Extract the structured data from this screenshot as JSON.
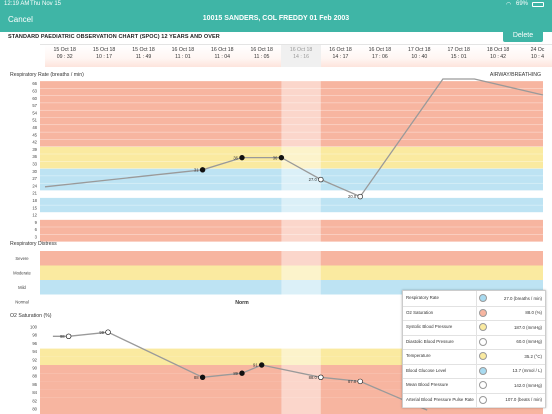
{
  "status_bar": {
    "time": "12:19 AM",
    "date": "Thu Nov 15",
    "battery": "69%"
  },
  "nav": {
    "cancel_label": "Cancel",
    "patient": "10015 SANDERS, COL FREDDY 01 Feb 2003"
  },
  "chart_title": "STANDARD PAEDIATRIC OBSERVATION CHART  (SPOC) 12 YEARS AND OVER",
  "delete_label": "Delete",
  "timepoints": [
    {
      "date": "15 Oct 18",
      "time": "09 : 32"
    },
    {
      "date": "15 Oct 18",
      "time": "10 : 17"
    },
    {
      "date": "15 Oct 18",
      "time": "11 : 49"
    },
    {
      "date": "16 Oct 18",
      "time": "11 : 01"
    },
    {
      "date": "16 Oct 18",
      "time": "11 : 04"
    },
    {
      "date": "16 Oct 18",
      "time": "11 : 05"
    },
    {
      "date": "16 Oct 18",
      "time": "14 : 16"
    },
    {
      "date": "16 Oct 18",
      "time": "14 : 17"
    },
    {
      "date": "16 Oct 18",
      "time": "17 : 06"
    },
    {
      "date": "17 Oct 18",
      "time": "10 : 40"
    },
    {
      "date": "17 Oct 18",
      "time": "15 : 01"
    },
    {
      "date": "18 Oct 18",
      "time": "10 : 42"
    },
    {
      "date": "24 Oc",
      "time": "10 : 4"
    }
  ],
  "resp_rate": {
    "title": "Respiratory Rate (breaths / min)",
    "right_label": "AIRWAY/BREATHING",
    "ticks": [
      "66",
      "63",
      "60",
      "57",
      "54",
      "51",
      "48",
      "45",
      "42",
      "39",
      "36",
      "33",
      "30",
      "27",
      "24",
      "21",
      "18",
      "15",
      "12",
      "9",
      "6",
      "3"
    ],
    "point_labels": [
      "31",
      "36",
      "36",
      "27.0",
      "20.0"
    ],
    "band_colors": {
      "red": "#f7b5a0",
      "yellow": "#faeaa0",
      "blue": "#bde3f3",
      "white": "#ffffff"
    }
  },
  "resp_distress": {
    "title": "Respiratory Distress",
    "rows": [
      "Severe",
      "Moderate",
      "Mild",
      "Normal"
    ],
    "normal_value": "Norm"
  },
  "o2_sat": {
    "title": "O2 Saturation (%)",
    "ticks": [
      "100",
      "98",
      "96",
      "94",
      "92",
      "90",
      "88",
      "86",
      "84",
      "82",
      "80"
    ],
    "point_labels": [
      "98",
      "99",
      "88",
      "89",
      "91",
      "88.0",
      "87.0"
    ]
  },
  "legend": [
    {
      "name": "Respiratory Rate",
      "color": "#a8daf0",
      "value": "27.0  (breaths / min)"
    },
    {
      "name": "O2 Saturation",
      "color": "#f7b5a0",
      "value": "88.0  (%)"
    },
    {
      "name": "Systolic Blood Pressure",
      "color": "#faeaa0",
      "value": "187.0  (mmHg)"
    },
    {
      "name": "Diastolic Blood Pressure",
      "color": "#ffffff",
      "value": "60.0  (mmHg)"
    },
    {
      "name": "Temperature",
      "color": "#faeaa0",
      "value": "35.2  (°C)"
    },
    {
      "name": "Blood Glucose Level",
      "color": "#a8daf0",
      "value": "13.7  (mmol / L)"
    },
    {
      "name": "Mean Blood Pressure",
      "color": "#ffffff",
      "value": "142.0  (mmHg)"
    },
    {
      "name": "Arterial Blood Pressure Pulse Rate",
      "color": "#ffffff",
      "value": "107.0  (beats / min)"
    }
  ]
}
